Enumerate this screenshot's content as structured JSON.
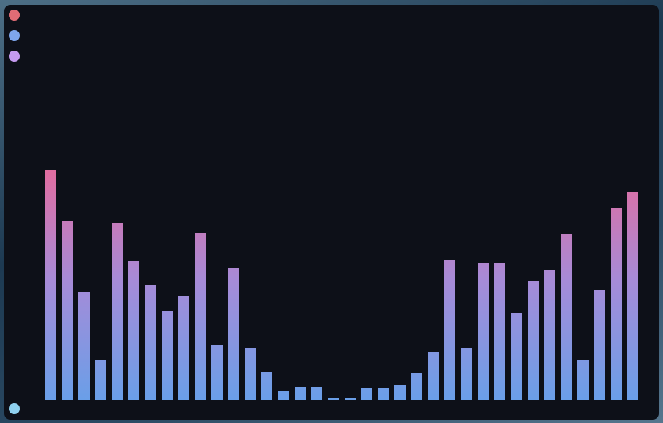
{
  "chart_data": {
    "type": "bar",
    "values": [
      291,
      226,
      137,
      50,
      224,
      175,
      145,
      112,
      131,
      211,
      69,
      167,
      66,
      36,
      12,
      17,
      17,
      2,
      2,
      15,
      15,
      19,
      34,
      61,
      177,
      66,
      173,
      173,
      110,
      150,
      164,
      209,
      50,
      139,
      243,
      262
    ],
    "ylim": [
      0,
      300
    ],
    "gradient": [
      "#6a9fe8",
      "#a68bd8",
      "#e56b9c"
    ]
  }
}
